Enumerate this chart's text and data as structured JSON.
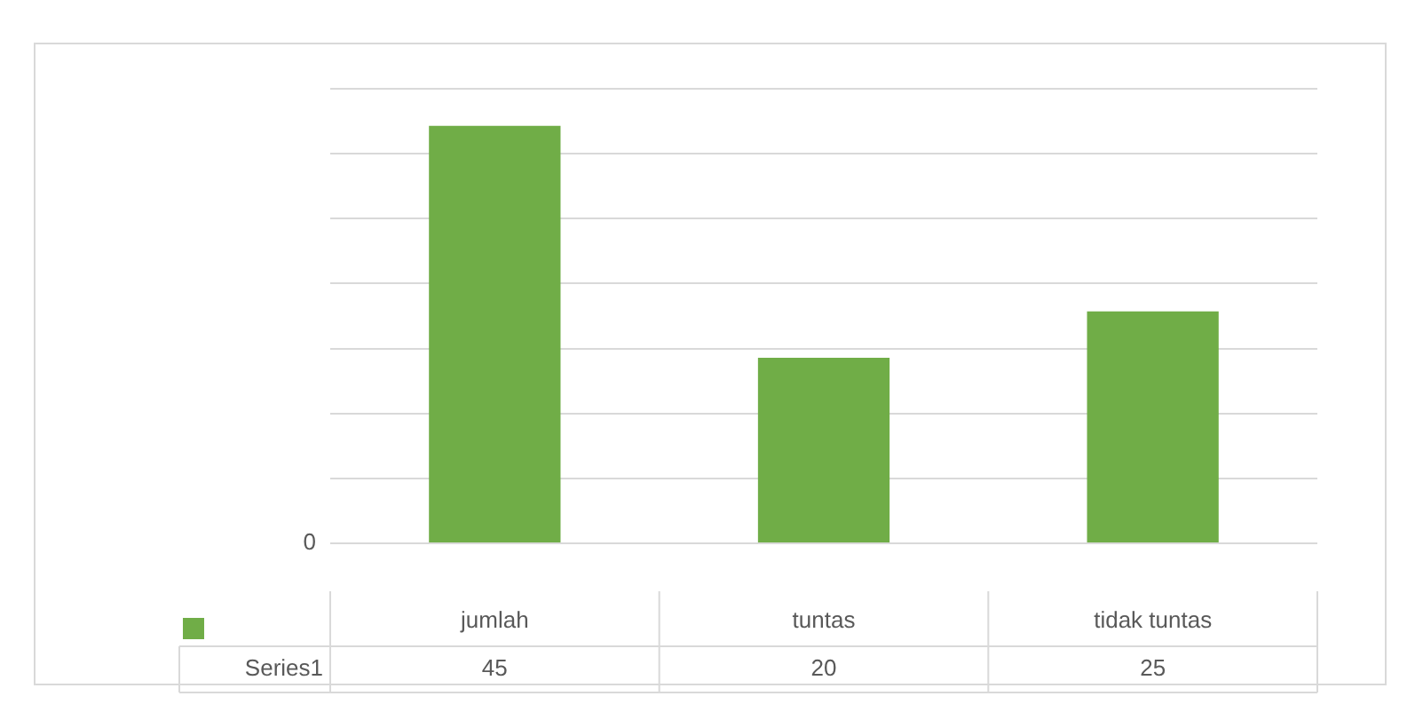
{
  "chart_data": {
    "type": "bar",
    "categories": [
      "jumlah",
      "tuntas",
      "tidak tuntas"
    ],
    "series": [
      {
        "name": "Series1",
        "color": "#70ad47",
        "values": [
          45,
          20,
          25
        ]
      }
    ],
    "ylim": [
      0,
      49
    ],
    "annotations": [
      "0"
    ],
    "yticks": [
      {
        "value": 0,
        "label": null
      },
      {
        "value": 7,
        "label": null
      },
      {
        "value": 14,
        "label": null
      },
      {
        "value": 21,
        "label": null
      },
      {
        "value": 28,
        "label": null
      },
      {
        "value": 35,
        "label": null
      },
      {
        "value": 42,
        "label": null
      },
      {
        "value": 49,
        "label": null
      }
    ],
    "grid": "y",
    "data_labels": true
  }
}
